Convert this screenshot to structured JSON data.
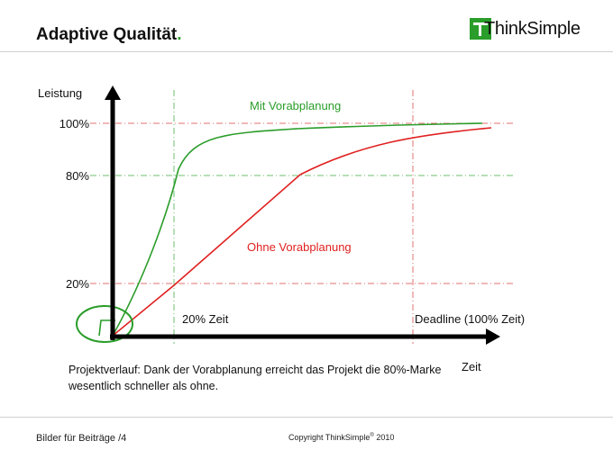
{
  "header": {
    "title": "Adaptive Qualität",
    "title_dot": ".",
    "logo_text": "ThinkSimple"
  },
  "diagram": {
    "y_axis_label": "Leistung",
    "x_axis_label": "Zeit",
    "y_ticks": [
      "100%",
      "80%",
      "20%"
    ],
    "marker_20": "20% Zeit",
    "marker_deadline": "Deadline (100% Zeit)",
    "series": [
      {
        "name": "Mit Vorabplanung",
        "color": "#2a9d2a"
      },
      {
        "name": "Ohne Vorabplanung",
        "color": "#e02020"
      }
    ]
  },
  "caption": {
    "text": "Projektverlauf: Dank der Vorabplanung erreicht das Projekt die 80%-Marke wesentlich schneller als ohne."
  },
  "footer": {
    "left": "Bilder für Beiträge /4",
    "copyright_prefix": "Copyright ThinkSimple",
    "copyright_mark": "®",
    "copyright_year": "2010"
  },
  "colors": {
    "green": "#2a9d2a",
    "red": "#e02020",
    "axis": "#000000"
  }
}
